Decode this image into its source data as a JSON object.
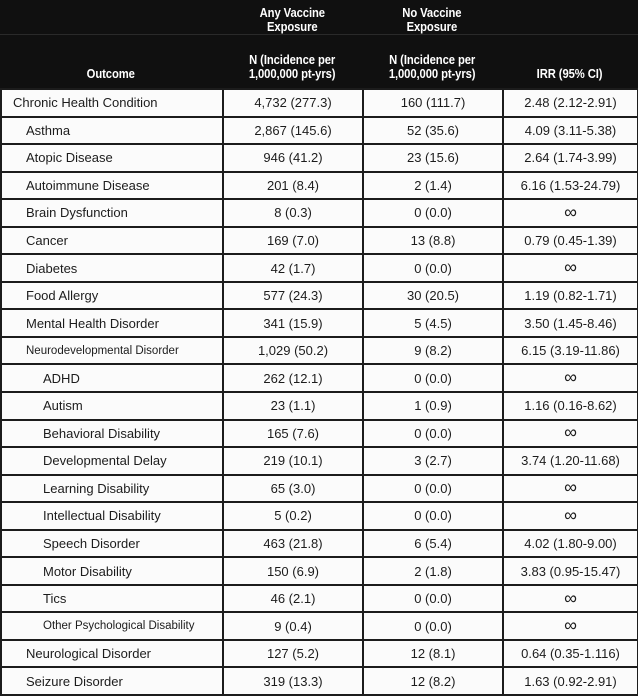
{
  "header": {
    "outcome_label": "Outcome",
    "any_group_title": "Any Vaccine\nExposure",
    "no_group_title": "No Vaccine\nExposure",
    "n_subtitle": "N (Incidence per\n1,000,000 pt-yrs)",
    "irr_label": "IRR (95% CI)"
  },
  "chart_data": {
    "type": "table",
    "group_headers": [
      "Any Vaccine Exposure",
      "No Vaccine Exposure"
    ],
    "columns": [
      "Outcome",
      "N (Incidence per 1,000,000 pt-yrs)",
      "N (Incidence per 1,000,000 pt-yrs)",
      "IRR (95% CI)"
    ],
    "rows": [
      {
        "outcome": "Chronic Health Condition",
        "level": 0,
        "any_vaccine_n": "4,732 (277.3)",
        "no_vaccine_n": "160 (111.7)",
        "irr_95ci": "2.48 (2.12-2.91)"
      },
      {
        "outcome": "Asthma",
        "level": 1,
        "any_vaccine_n": "2,867 (145.6)",
        "no_vaccine_n": "52 (35.6)",
        "irr_95ci": "4.09 (3.11-5.38)"
      },
      {
        "outcome": "Atopic Disease",
        "level": 1,
        "any_vaccine_n": "946 (41.2)",
        "no_vaccine_n": "23 (15.6)",
        "irr_95ci": "2.64 (1.74-3.99)"
      },
      {
        "outcome": "Autoimmune Disease",
        "level": 1,
        "any_vaccine_n": "201 (8.4)",
        "no_vaccine_n": "2 (1.4)",
        "irr_95ci": "6.16 (1.53-24.79)"
      },
      {
        "outcome": "Brain Dysfunction",
        "level": 1,
        "any_vaccine_n": "8 (0.3)",
        "no_vaccine_n": "0 (0.0)",
        "irr_95ci": "∞"
      },
      {
        "outcome": "Cancer",
        "level": 1,
        "any_vaccine_n": "169 (7.0)",
        "no_vaccine_n": "13 (8.8)",
        "irr_95ci": "0.79 (0.45-1.39)"
      },
      {
        "outcome": "Diabetes",
        "level": 1,
        "any_vaccine_n": "42 (1.7)",
        "no_vaccine_n": "0 (0.0)",
        "irr_95ci": "∞"
      },
      {
        "outcome": "Food Allergy",
        "level": 1,
        "any_vaccine_n": "577 (24.3)",
        "no_vaccine_n": "30 (20.5)",
        "irr_95ci": "1.19 (0.82-1.71)"
      },
      {
        "outcome": "Mental Health Disorder",
        "level": 1,
        "any_vaccine_n": "341 (15.9)",
        "no_vaccine_n": "5 (4.5)",
        "irr_95ci": "3.50 (1.45-8.46)"
      },
      {
        "outcome": "Neurodevelopmental Disorder",
        "level": 1,
        "any_vaccine_n": "1,029 (50.2)",
        "no_vaccine_n": "9 (8.2)",
        "irr_95ci": "6.15 (3.19-11.86)"
      },
      {
        "outcome": "ADHD",
        "level": 2,
        "any_vaccine_n": "262 (12.1)",
        "no_vaccine_n": "0 (0.0)",
        "irr_95ci": "∞"
      },
      {
        "outcome": "Autism",
        "level": 2,
        "any_vaccine_n": "23 (1.1)",
        "no_vaccine_n": "1 (0.9)",
        "irr_95ci": "1.16 (0.16-8.62)"
      },
      {
        "outcome": "Behavioral Disability",
        "level": 2,
        "any_vaccine_n": "165 (7.6)",
        "no_vaccine_n": "0 (0.0)",
        "irr_95ci": "∞"
      },
      {
        "outcome": "Developmental Delay",
        "level": 2,
        "any_vaccine_n": "219 (10.1)",
        "no_vaccine_n": "3 (2.7)",
        "irr_95ci": "3.74 (1.20-11.68)"
      },
      {
        "outcome": "Learning Disability",
        "level": 2,
        "any_vaccine_n": "65 (3.0)",
        "no_vaccine_n": "0 (0.0)",
        "irr_95ci": "∞"
      },
      {
        "outcome": "Intellectual Disability",
        "level": 2,
        "any_vaccine_n": "5 (0.2)",
        "no_vaccine_n": "0 (0.0)",
        "irr_95ci": "∞"
      },
      {
        "outcome": "Speech Disorder",
        "level": 2,
        "any_vaccine_n": "463 (21.8)",
        "no_vaccine_n": "6 (5.4)",
        "irr_95ci": "4.02 (1.80-9.00)"
      },
      {
        "outcome": "Motor Disability",
        "level": 2,
        "any_vaccine_n": "150 (6.9)",
        "no_vaccine_n": "2 (1.8)",
        "irr_95ci": "3.83 (0.95-15.47)"
      },
      {
        "outcome": "Tics",
        "level": 2,
        "any_vaccine_n": "46 (2.1)",
        "no_vaccine_n": "0 (0.0)",
        "irr_95ci": "∞"
      },
      {
        "outcome": "Other Psychological Disability",
        "level": 2,
        "any_vaccine_n": "9 (0.4)",
        "no_vaccine_n": "0 (0.0)",
        "irr_95ci": "∞"
      },
      {
        "outcome": "Neurological Disorder",
        "level": 1,
        "any_vaccine_n": "127 (5.2)",
        "no_vaccine_n": "12 (8.1)",
        "irr_95ci": "0.64 (0.35-1.116)"
      },
      {
        "outcome": "Seizure Disorder",
        "level": 1,
        "any_vaccine_n": "319 (13.3)",
        "no_vaccine_n": "12 (8.2)",
        "irr_95ci": "1.63 (0.92-2.91)"
      }
    ]
  },
  "colors": {
    "header_bg": "#101010",
    "header_text": "#ffffff",
    "body_bg": "#fafafa",
    "body_text": "#1c1c1c",
    "border": "#1c1c1c"
  },
  "symbols": {
    "infinity": "∞"
  }
}
